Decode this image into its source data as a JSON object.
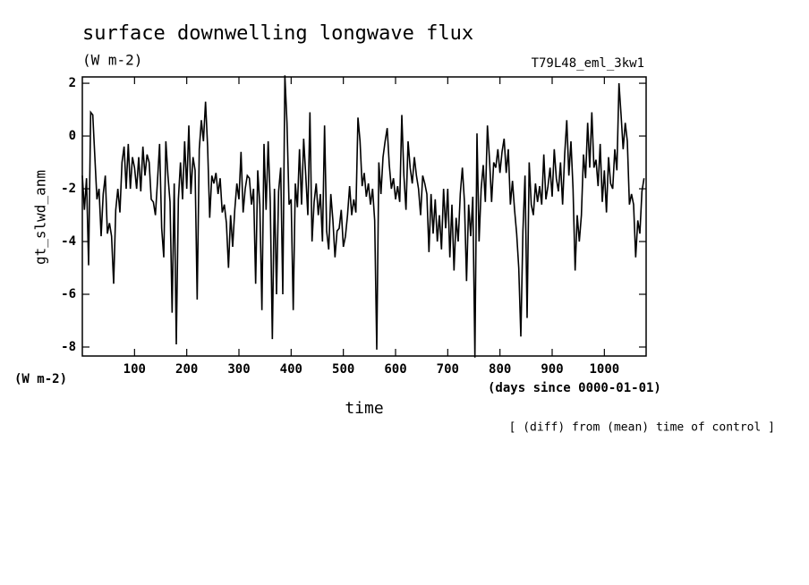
{
  "chart_data": {
    "type": "line",
    "title": "surface downwelling longwave flux",
    "subtitle": "(W m-2)",
    "run_label": "T79L48_eml_3kw1",
    "ylabel": "gt_slwd_anm",
    "y_units": "(W m-2)",
    "x_units": "(days since 0000-01-01)",
    "xlabel": "time",
    "note": "[ (diff) from (mean) time of control ]",
    "xlim": [
      0,
      1080
    ],
    "ylim": [
      -8.34,
      2.24
    ],
    "xticks": [
      100,
      200,
      300,
      400,
      500,
      600,
      700,
      800,
      900,
      1000
    ],
    "yticks": [
      -8,
      -6,
      -4,
      -2,
      0,
      2
    ],
    "color": "#000000",
    "x": [
      0,
      4,
      8,
      12,
      16,
      20,
      24,
      28,
      32,
      36,
      40,
      44,
      48,
      52,
      56,
      60,
      64,
      68,
      72,
      76,
      80,
      84,
      88,
      92,
      96,
      100,
      104,
      108,
      112,
      116,
      120,
      124,
      128,
      132,
      136,
      140,
      144,
      148,
      152,
      156,
      160,
      164,
      168,
      172,
      176,
      180,
      184,
      188,
      192,
      196,
      200,
      204,
      208,
      212,
      216,
      220,
      224,
      228,
      232,
      236,
      240,
      244,
      248,
      252,
      256,
      260,
      264,
      268,
      272,
      276,
      280,
      284,
      288,
      292,
      296,
      300,
      304,
      308,
      312,
      316,
      320,
      324,
      328,
      332,
      336,
      340,
      344,
      348,
      352,
      356,
      360,
      364,
      368,
      372,
      376,
      380,
      384,
      388,
      392,
      396,
      400,
      404,
      408,
      412,
      416,
      420,
      424,
      428,
      432,
      436,
      440,
      444,
      448,
      452,
      456,
      460,
      464,
      468,
      472,
      476,
      480,
      484,
      488,
      492,
      496,
      500,
      504,
      508,
      512,
      516,
      520,
      524,
      528,
      532,
      536,
      540,
      544,
      548,
      552,
      556,
      560,
      564,
      568,
      572,
      576,
      580,
      584,
      588,
      592,
      596,
      600,
      604,
      608,
      612,
      616,
      620,
      624,
      628,
      632,
      636,
      640,
      644,
      648,
      652,
      656,
      660,
      664,
      668,
      672,
      676,
      680,
      684,
      688,
      692,
      696,
      700,
      704,
      708,
      712,
      716,
      720,
      724,
      728,
      732,
      736,
      740,
      744,
      748,
      752,
      756,
      760,
      764,
      768,
      772,
      776,
      780,
      784,
      788,
      792,
      796,
      800,
      804,
      808,
      812,
      816,
      820,
      824,
      828,
      832,
      836,
      840,
      844,
      848,
      852,
      856,
      860,
      864,
      868,
      872,
      876,
      880,
      884,
      888,
      892,
      896,
      900,
      904,
      908,
      912,
      916,
      920,
      924,
      928,
      932,
      936,
      940,
      944,
      948,
      952,
      956,
      960,
      964,
      968,
      972,
      976,
      980,
      984,
      988,
      992,
      996,
      1000,
      1004,
      1008,
      1012,
      1016,
      1020,
      1024,
      1028,
      1032,
      1036,
      1040,
      1044,
      1048,
      1052,
      1056,
      1060,
      1064,
      1068,
      1072,
      1076
    ],
    "values": [
      -1.5,
      -2.8,
      -1.6,
      -4.9,
      0.9,
      0.8,
      -0.8,
      -2.4,
      -2.0,
      -3.8,
      -2.2,
      -1.5,
      -3.7,
      -3.3,
      -3.8,
      -5.6,
      -2.8,
      -2.0,
      -2.9,
      -1.0,
      -0.4,
      -2.0,
      -0.3,
      -2.0,
      -0.8,
      -1.2,
      -2.0,
      -0.8,
      -2.1,
      -0.4,
      -1.5,
      -0.7,
      -1.0,
      -2.4,
      -2.5,
      -3.0,
      -1.7,
      -0.3,
      -3.5,
      -4.6,
      -0.2,
      -1.5,
      -2.5,
      -6.7,
      -1.8,
      -7.9,
      -2.4,
      -1.0,
      -2.4,
      -0.2,
      -2.0,
      0.4,
      -2.2,
      -0.8,
      -1.3,
      -6.2,
      -0.5,
      0.6,
      -0.2,
      1.3,
      -0.4,
      -3.1,
      -1.5,
      -1.8,
      -1.4,
      -2.2,
      -1.6,
      -2.9,
      -2.6,
      -3.3,
      -5.0,
      -3.0,
      -4.2,
      -2.8,
      -1.8,
      -2.4,
      -0.6,
      -2.9,
      -2.0,
      -1.5,
      -1.6,
      -2.6,
      -2.0,
      -5.6,
      -1.3,
      -2.6,
      -6.6,
      -0.3,
      -2.8,
      -0.2,
      -2.5,
      -7.7,
      -2.0,
      -6.0,
      -2.1,
      -1.2,
      -6.0,
      2.3,
      0.5,
      -2.6,
      -2.4,
      -6.6,
      -1.8,
      -2.7,
      -0.5,
      -2.6,
      -0.1,
      -1.5,
      -3.0,
      0.9,
      -4.0,
      -2.5,
      -1.8,
      -3.0,
      -2.2,
      -4.0,
      0.4,
      -3.6,
      -4.3,
      -2.2,
      -3.2,
      -4.6,
      -3.6,
      -3.5,
      -2.8,
      -4.2,
      -3.8,
      -3.0,
      -1.9,
      -3.0,
      -2.4,
      -2.9,
      0.7,
      -0.2,
      -1.9,
      -1.4,
      -2.3,
      -1.8,
      -2.6,
      -2.0,
      -3.2,
      -8.1,
      -1.0,
      -2.2,
      -0.8,
      -0.2,
      0.3,
      -1.1,
      -2.0,
      -1.6,
      -2.4,
      -1.9,
      -2.5,
      0.8,
      -1.5,
      -2.8,
      -0.2,
      -1.2,
      -1.8,
      -0.8,
      -1.5,
      -2.0,
      -3.0,
      -1.5,
      -1.8,
      -2.2,
      -4.4,
      -2.2,
      -3.7,
      -2.4,
      -4.0,
      -3.0,
      -4.3,
      -2.0,
      -3.5,
      -2.0,
      -4.6,
      -2.6,
      -5.1,
      -3.1,
      -4.0,
      -2.2,
      -1.2,
      -2.5,
      -5.5,
      -2.6,
      -3.8,
      -2.3,
      -8.4,
      0.1,
      -4.0,
      -2.0,
      -1.1,
      -2.5,
      0.4,
      -0.9,
      -2.5,
      -1.0,
      -1.2,
      -0.5,
      -1.4,
      -0.6,
      -0.1,
      -1.4,
      -0.5,
      -2.6,
      -1.7,
      -2.8,
      -3.7,
      -5.0,
      -7.6,
      -3.6,
      -1.5,
      -6.9,
      -1.0,
      -2.6,
      -3.0,
      -1.8,
      -2.5,
      -1.9,
      -2.6,
      -0.7,
      -2.4,
      -1.9,
      -1.2,
      -2.3,
      -0.5,
      -1.6,
      -2.1,
      -1.0,
      -2.6,
      -0.7,
      0.6,
      -1.5,
      -0.2,
      -2.0,
      -5.1,
      -3.0,
      -4.0,
      -3.0,
      -0.7,
      -1.6,
      0.5,
      -1.2,
      0.9,
      -1.2,
      -0.9,
      -1.9,
      -0.3,
      -2.5,
      -1.3,
      -2.9,
      -0.8,
      -1.8,
      -2.0,
      -0.5,
      -1.3,
      2.0,
      0.8,
      -0.5,
      0.5,
      -0.2,
      -2.6,
      -2.2,
      -2.6,
      -4.6,
      -3.2,
      -3.7,
      -2.1,
      -1.6
    ]
  }
}
